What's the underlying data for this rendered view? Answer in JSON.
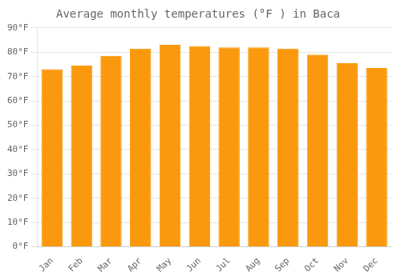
{
  "chart_data": {
    "type": "bar",
    "title": "Average monthly temperatures (°F ) in Baca",
    "categories": [
      "Jan",
      "Feb",
      "Mar",
      "Apr",
      "May",
      "Jun",
      "Jul",
      "Aug",
      "Sep",
      "Oct",
      "Nov",
      "Dec"
    ],
    "values": [
      73,
      74.5,
      78.5,
      81.5,
      83,
      82.5,
      82,
      82,
      81.5,
      79,
      75.5,
      73.5
    ],
    "color": "#fa990d",
    "ylim": [
      0,
      90
    ],
    "yticks": [
      {
        "value": 0,
        "label": "0°F"
      },
      {
        "value": 10,
        "label": "10°F"
      },
      {
        "value": 20,
        "label": "20°F"
      },
      {
        "value": 30,
        "label": "30°F"
      },
      {
        "value": 40,
        "label": "40°F"
      },
      {
        "value": 50,
        "label": "50°F"
      },
      {
        "value": 60,
        "label": "60°F"
      },
      {
        "value": 70,
        "label": "70°F"
      },
      {
        "value": 80,
        "label": "80°F"
      },
      {
        "value": 90,
        "label": "90°F"
      }
    ],
    "grid": true
  }
}
